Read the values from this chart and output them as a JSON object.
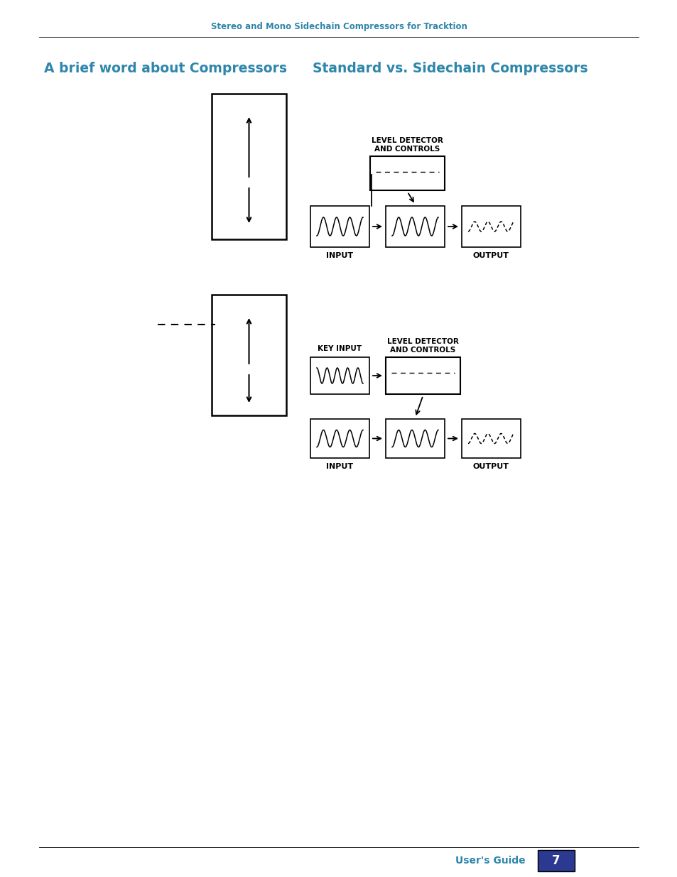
{
  "page_title": "Stereo and Mono Sidechain Compressors for Tracktion",
  "left_title": "A brief word about Compressors",
  "right_title": "Standard vs. Sidechain Compressors",
  "label_level_detector": "LEVEL DETECTOR\nAND CONTROLS",
  "label_input": "INPUT",
  "label_output": "OUTPUT",
  "label_key_input": "KEY INPUT",
  "footer_text": "User's Guide",
  "page_number": "7",
  "title_color": "#2e86ab",
  "header_color": "#2e86ab",
  "text_color": "#000000",
  "bg_color": "#ffffff"
}
